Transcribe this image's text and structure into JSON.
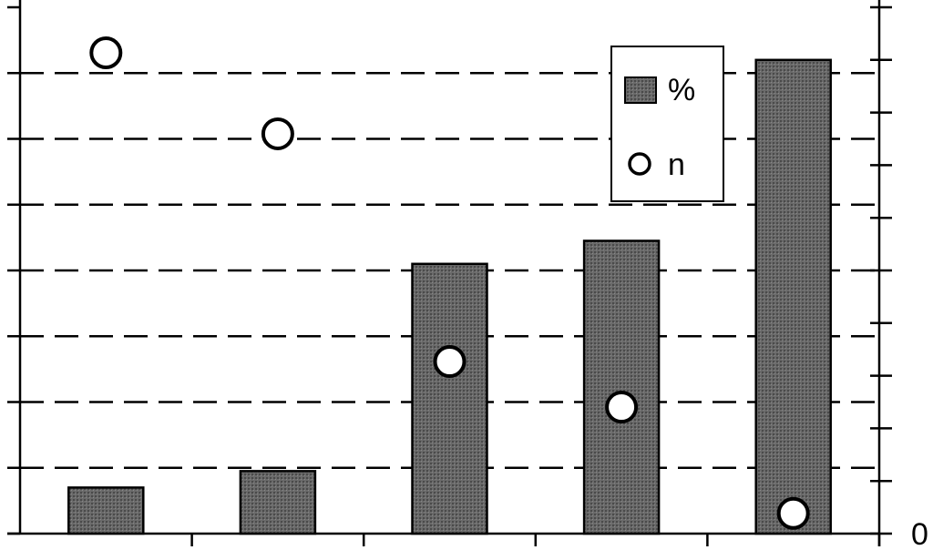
{
  "chart_data": {
    "type": "bar",
    "categories": [
      "",
      "",
      "",
      "",
      ""
    ],
    "series": [
      {
        "name": "%",
        "kind": "bar",
        "axis": "left",
        "values": [
          0.7,
          0.95,
          4.1,
          4.45,
          7.2
        ]
      },
      {
        "name": "n",
        "kind": "scatter",
        "axis": "right",
        "values": [
          0.95,
          0.79,
          0.34,
          0.25,
          0.04
        ]
      }
    ],
    "ylim": [
      0,
      8
    ],
    "y2lim": [
      0,
      1.04
    ],
    "y2_tick_labels": [
      "0"
    ],
    "grid": true,
    "legend_position": "top-right",
    "colors": {
      "bar_fill": "#5e5e5e",
      "point_fill": "#ffffff",
      "line": "#000000"
    }
  }
}
